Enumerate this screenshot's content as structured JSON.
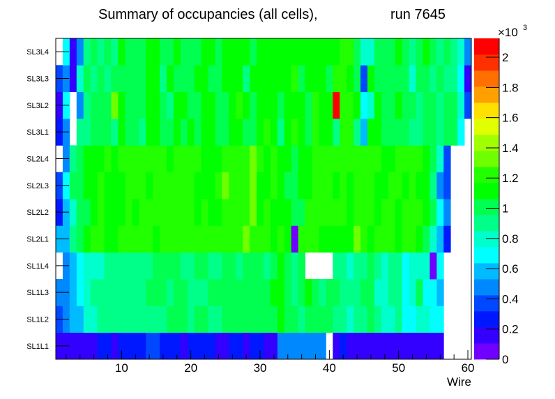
{
  "chart_data": {
    "type": "heatmap",
    "title": "Summary of occupancies (all cells),",
    "title_run": "run 7645",
    "xlabel": "Wire",
    "ylabel": "",
    "xlim": [
      0.5,
      60.5
    ],
    "x_ticks": [
      "10",
      "20",
      "30",
      "40",
      "50",
      "60"
    ],
    "x_tick_values": [
      10,
      20,
      30,
      40,
      50,
      60
    ],
    "y_categories": [
      "SL1L1",
      "SL1L2",
      "SL1L3",
      "SL1L4",
      "SL2L1",
      "SL2L2",
      "SL2L3",
      "SL2L4",
      "SL3L1",
      "SL3L2",
      "SL3L3",
      "SL3L4"
    ],
    "zlim": [
      0,
      2125
    ],
    "z_levels": 20,
    "palette": {
      "exponent_base": "×10",
      "exponent_power": "3",
      "tick_labels": [
        "0",
        "0.2",
        "0.4",
        "0.6",
        "0.8",
        "1",
        "1.2",
        "1.4",
        "1.6",
        "1.8",
        "2"
      ],
      "tick_values": [
        0,
        0.2,
        0.4,
        0.6,
        0.8,
        1.0,
        1.2,
        1.4,
        1.6,
        1.8,
        2.0
      ],
      "colors": [
        "#7000ff",
        "#3300ff",
        "#0018ff",
        "#0048ff",
        "#0088ff",
        "#00bbff",
        "#00ffff",
        "#00ffcc",
        "#00ff88",
        "#00ff50",
        "#00ff00",
        "#22ff00",
        "#70ff00",
        "#a0ff00",
        "#e0ff00",
        "#ffe000",
        "#ffa000",
        "#ff7000",
        "#ff3000",
        "#ff0000"
      ]
    },
    "z": [
      [
        150,
        150,
        150,
        150,
        150,
        150,
        260,
        260,
        150,
        260,
        260,
        260,
        260,
        370,
        370,
        260,
        260,
        260,
        150,
        260,
        260,
        260,
        260,
        150,
        150,
        260,
        260,
        150,
        260,
        260,
        150,
        150,
        480,
        480,
        480,
        480,
        480,
        480,
        480,
        0,
        150,
        260,
        150,
        150,
        150,
        150,
        150,
        150,
        150,
        150,
        150,
        150,
        150,
        150,
        150,
        150,
        0,
        0,
        0,
        0
      ],
      [
        370,
        480,
        590,
        590,
        800,
        800,
        900,
        900,
        900,
        900,
        900,
        900,
        900,
        900,
        900,
        900,
        1010,
        1010,
        1010,
        900,
        1010,
        1010,
        900,
        900,
        1010,
        1010,
        1010,
        1010,
        1010,
        1010,
        1010,
        1010,
        1120,
        1010,
        1010,
        900,
        1010,
        1010,
        1010,
        1010,
        900,
        900,
        800,
        900,
        900,
        1010,
        900,
        800,
        800,
        900,
        690,
        690,
        800,
        800,
        690,
        690,
        0,
        0,
        0,
        0
      ],
      [
        480,
        480,
        590,
        690,
        800,
        900,
        900,
        900,
        900,
        900,
        900,
        900,
        900,
        1010,
        1010,
        1010,
        900,
        1010,
        1010,
        900,
        900,
        900,
        1010,
        1010,
        1010,
        1010,
        1010,
        1010,
        1010,
        1010,
        1010,
        1120,
        1120,
        1010,
        900,
        1010,
        1120,
        1010,
        900,
        1010,
        1010,
        900,
        900,
        900,
        1010,
        1010,
        800,
        800,
        900,
        900,
        690,
        800,
        1010,
        690,
        690,
        590,
        0,
        0,
        0,
        0
      ],
      [
        0,
        480,
        590,
        690,
        800,
        800,
        800,
        900,
        900,
        900,
        900,
        900,
        900,
        900,
        1010,
        1010,
        1010,
        1010,
        900,
        900,
        1010,
        1010,
        900,
        900,
        1010,
        1010,
        900,
        1010,
        1010,
        1010,
        900,
        1010,
        1120,
        1010,
        900,
        1010,
        0,
        0,
        0,
        0,
        900,
        900,
        800,
        900,
        900,
        1010,
        900,
        800,
        900,
        900,
        690,
        800,
        800,
        800,
        50,
        690,
        0,
        0,
        0,
        0
      ],
      [
        590,
        590,
        900,
        1010,
        1120,
        1220,
        1220,
        1120,
        1120,
        1220,
        1220,
        1220,
        1220,
        1220,
        1120,
        1220,
        1220,
        1220,
        1220,
        1220,
        1220,
        1220,
        1220,
        1220,
        1220,
        1220,
        1220,
        1330,
        1220,
        1220,
        1220,
        1120,
        1220,
        1120,
        50,
        1220,
        1220,
        1220,
        1120,
        1120,
        1120,
        1120,
        1120,
        1330,
        1220,
        1120,
        1220,
        1220,
        1220,
        1120,
        1220,
        1220,
        1120,
        1010,
        800,
        590,
        260,
        0,
        0,
        0
      ],
      [
        260,
        590,
        800,
        1010,
        1010,
        1120,
        1220,
        1120,
        1120,
        1120,
        1220,
        1120,
        1220,
        1220,
        1220,
        1220,
        1220,
        1220,
        1220,
        1220,
        1120,
        1220,
        1120,
        1120,
        1220,
        1220,
        1220,
        1220,
        1330,
        1120,
        1220,
        1120,
        1120,
        1120,
        1010,
        1010,
        1220,
        1220,
        1220,
        1220,
        1220,
        1220,
        1120,
        1220,
        1220,
        1220,
        1120,
        1220,
        1220,
        1120,
        1220,
        1220,
        1220,
        1120,
        1010,
        690,
        480,
        0,
        0,
        0
      ],
      [
        370,
        690,
        1010,
        1010,
        1120,
        1120,
        1220,
        1120,
        1120,
        1120,
        1220,
        1220,
        1220,
        1120,
        1220,
        1220,
        1220,
        1220,
        1220,
        1220,
        1120,
        1120,
        1120,
        1220,
        1330,
        1220,
        1220,
        1220,
        1330,
        1120,
        1120,
        1220,
        1120,
        1010,
        1010,
        1120,
        1120,
        1220,
        1220,
        1220,
        1120,
        1220,
        1120,
        1220,
        1220,
        1220,
        1120,
        1120,
        1220,
        1220,
        1120,
        1220,
        1120,
        1120,
        900,
        480,
        370,
        0,
        0,
        0
      ],
      [
        0,
        480,
        900,
        1010,
        1120,
        1120,
        1120,
        1220,
        1120,
        1220,
        1220,
        1220,
        1220,
        1220,
        1220,
        1220,
        1120,
        1220,
        1220,
        1220,
        1220,
        1120,
        1120,
        1120,
        1220,
        1220,
        1220,
        1220,
        1330,
        1220,
        1120,
        1220,
        1120,
        1120,
        1010,
        1120,
        1120,
        1220,
        1220,
        1220,
        1220,
        1220,
        1220,
        1220,
        1220,
        1220,
        1220,
        1120,
        1120,
        1220,
        1220,
        1220,
        1220,
        1120,
        1010,
        800,
        370,
        0,
        0,
        0
      ],
      [
        260,
        480,
        0,
        900,
        900,
        1010,
        1010,
        1010,
        900,
        1120,
        1010,
        1010,
        900,
        1120,
        1120,
        1010,
        1010,
        1120,
        1010,
        1120,
        1010,
        1120,
        1120,
        1010,
        1010,
        1120,
        1120,
        1010,
        1010,
        1120,
        1220,
        1120,
        900,
        1120,
        1220,
        1120,
        1010,
        1220,
        1120,
        1120,
        900,
        1220,
        1220,
        900,
        590,
        1120,
        1120,
        1010,
        1010,
        1010,
        1010,
        900,
        900,
        1010,
        1010,
        900,
        1010,
        1010,
        690,
        0
      ],
      [
        150,
        690,
        0,
        480,
        900,
        1010,
        1010,
        1010,
        1330,
        1120,
        1010,
        1010,
        1010,
        1120,
        1120,
        1010,
        900,
        1120,
        1120,
        1010,
        1010,
        1120,
        1120,
        1010,
        1010,
        1120,
        1220,
        1120,
        1010,
        1120,
        1120,
        1120,
        1010,
        1120,
        1120,
        1120,
        1010,
        1220,
        1120,
        1120,
        2080,
        1220,
        1220,
        1120,
        690,
        800,
        1120,
        1010,
        1010,
        1120,
        1010,
        1010,
        900,
        1010,
        1010,
        900,
        1010,
        1010,
        800,
        370
      ],
      [
        370,
        480,
        150,
        800,
        1010,
        900,
        1010,
        900,
        1010,
        1010,
        1010,
        1010,
        1010,
        1120,
        1120,
        900,
        1120,
        1010,
        1010,
        1010,
        1120,
        1120,
        1010,
        1010,
        1120,
        1120,
        1120,
        900,
        1120,
        1120,
        1120,
        1120,
        1120,
        1120,
        1220,
        1010,
        1120,
        1120,
        1120,
        1010,
        1220,
        1220,
        1120,
        1010,
        370,
        1120,
        1010,
        1010,
        1010,
        1010,
        1010,
        800,
        1010,
        1010,
        900,
        1010,
        900,
        900,
        690,
        150
      ],
      [
        0,
        690,
        150,
        480,
        900,
        1010,
        900,
        1010,
        900,
        1120,
        1010,
        1010,
        1010,
        1120,
        1120,
        1010,
        1010,
        1120,
        1010,
        1010,
        1010,
        1120,
        1120,
        1010,
        1120,
        1120,
        1120,
        1120,
        1010,
        1120,
        1120,
        1120,
        1120,
        1120,
        1120,
        1120,
        1120,
        1120,
        1120,
        1120,
        1120,
        1220,
        1220,
        1010,
        800,
        800,
        1010,
        1010,
        1010,
        1120,
        1010,
        900,
        1010,
        1120,
        1010,
        900,
        1010,
        900,
        800,
        480
      ]
    ]
  }
}
